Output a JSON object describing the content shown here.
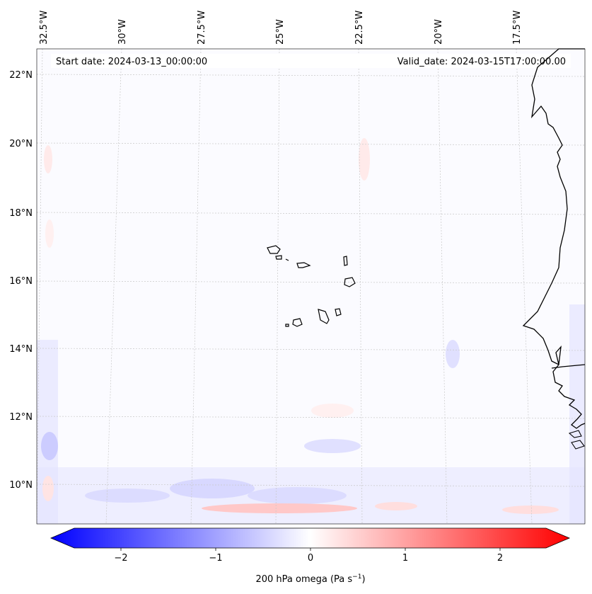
{
  "map": {
    "start_date_text": "Start date: 2024-03-13_00:00:00",
    "valid_date_text": "Valid_date: 2024-03-15T17:00:00.00",
    "lon_labels": [
      "32.5°W",
      "30°W",
      "27.5°W",
      "25°W",
      "22.5°W",
      "20°W",
      "17.5°W"
    ],
    "lat_labels": [
      "22°N",
      "20°N",
      "18°N",
      "16°N",
      "14°N",
      "12°N",
      "10°N"
    ],
    "field_colors": {
      "negative": "#0000ff",
      "neutral": "#ffffff",
      "positive": "#ff0000",
      "coast": "#000000"
    }
  },
  "colorbar": {
    "ticks": [
      "−2",
      "−1",
      "0",
      "1",
      "2"
    ],
    "label": "200 hPa omega (Pa s",
    "label_sup": "−1",
    "label_end": ")",
    "extend": "both"
  }
}
